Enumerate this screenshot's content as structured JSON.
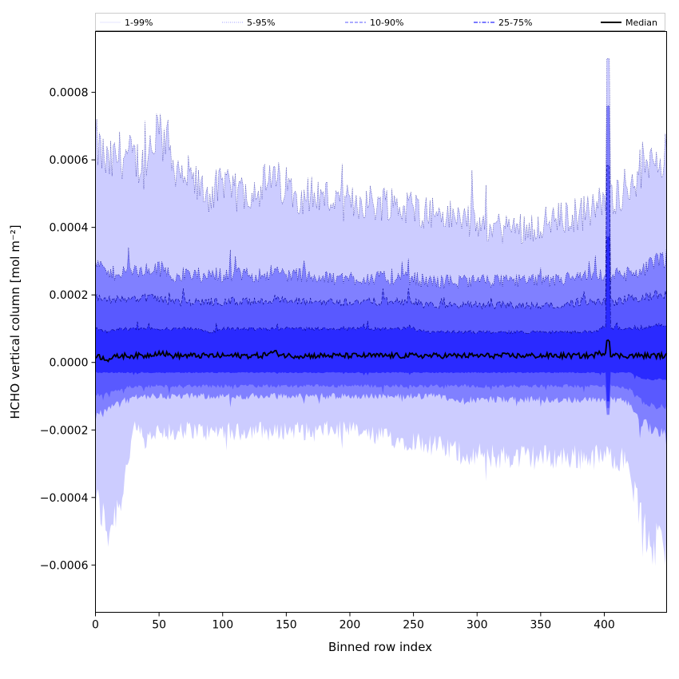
{
  "chart_data": {
    "type": "area",
    "title": "",
    "xlabel": "Binned row index",
    "ylabel": "HCHO vertical column [mol m⁻²]",
    "xlim": [
      0,
      449
    ],
    "ylim": [
      -0.00074,
      0.00098
    ],
    "x_ticks": [
      0,
      50,
      100,
      150,
      200,
      250,
      300,
      350,
      400
    ],
    "x_tick_labels": [
      "0",
      "50",
      "100",
      "150",
      "200",
      "250",
      "300",
      "350",
      "400"
    ],
    "y_ticks": [
      -0.0006,
      -0.0004,
      -0.0002,
      0.0,
      0.0002,
      0.0004,
      0.0006,
      0.0008
    ],
    "y_tick_labels": [
      "−0.0006",
      "−0.0004",
      "−0.0002",
      "0.0000",
      "0.0002",
      "0.0004",
      "0.0006",
      "0.0008"
    ],
    "grid": false,
    "legend_placement": "top, horizontal strip above the plot",
    "legend": [
      {
        "label": "1-99%",
        "color": "#ccccff",
        "style": "solid-thin"
      },
      {
        "label": "5-95%",
        "color": "#8080ff",
        "style": "dotted"
      },
      {
        "label": "10-90%",
        "color": "#5959ff",
        "style": "dashed"
      },
      {
        "label": "25-75%",
        "color": "#2a2aff",
        "style": "dashdot"
      },
      {
        "label": "Median",
        "color": "#000000",
        "style": "solid-thick"
      }
    ],
    "band_fill_colors": [
      "#ccccff",
      "#8080ff",
      "#5959ff",
      "#2a2aff"
    ],
    "edge_color": "#00008b",
    "x": [
      0,
      10,
      20,
      30,
      40,
      50,
      60,
      70,
      80,
      90,
      100,
      110,
      120,
      130,
      140,
      150,
      160,
      170,
      180,
      190,
      200,
      210,
      220,
      230,
      240,
      250,
      260,
      270,
      280,
      290,
      300,
      310,
      320,
      330,
      340,
      350,
      360,
      370,
      380,
      390,
      400,
      410,
      420,
      430,
      440,
      449
    ],
    "series": [
      {
        "name": "1-99%",
        "lower": [
          -0.0004,
          -0.0005,
          -0.0004,
          -0.0002,
          -0.00022,
          -0.0002,
          -0.00021,
          -0.0002,
          -0.0002,
          -0.00021,
          -0.0002,
          -0.00021,
          -0.0002,
          -0.0002,
          -0.00021,
          -0.0002,
          -0.0002,
          -0.00021,
          -0.0002,
          -0.0002,
          -0.0002,
          -0.00021,
          -0.00022,
          -0.00022,
          -0.00023,
          -0.00023,
          -0.00024,
          -0.00025,
          -0.00026,
          -0.00027,
          -0.00027,
          -0.00028,
          -0.00028,
          -0.00028,
          -0.00028,
          -0.00028,
          -0.00028,
          -0.00028,
          -0.00028,
          -0.00028,
          -0.00028,
          -0.00028,
          -0.0003,
          -0.0005,
          -0.00055,
          -0.00055
        ],
        "upper": [
          0.00065,
          0.00058,
          0.00062,
          0.0006,
          0.00058,
          0.00068,
          0.0006,
          0.00056,
          0.00052,
          0.0005,
          0.00052,
          0.0005,
          0.00051,
          0.00052,
          0.00054,
          0.00052,
          0.0005,
          0.0005,
          0.00049,
          0.00048,
          0.00047,
          0.00048,
          0.00047,
          0.00048,
          0.00046,
          0.00046,
          0.00045,
          0.00044,
          0.00043,
          0.00043,
          0.00041,
          0.0004,
          0.0004,
          0.0004,
          0.0004,
          0.00041,
          0.00042,
          0.00043,
          0.00044,
          0.00045,
          0.00048,
          0.0005,
          0.00053,
          0.00058,
          0.00063,
          0.0006
        ]
      },
      {
        "name": "5-95%",
        "lower": [
          -0.00016,
          -0.00014,
          -0.00012,
          -0.0001,
          -0.0001,
          -0.0001,
          -0.0001,
          -0.0001,
          -0.0001,
          -0.0001,
          -0.0001,
          -0.0001,
          -0.0001,
          -0.0001,
          -0.0001,
          -0.0001,
          -0.0001,
          -0.0001,
          -0.0001,
          -0.0001,
          -0.0001,
          -0.0001,
          -0.0001,
          -0.0001,
          -0.0001,
          -0.0001,
          -0.0001,
          -0.0001,
          -0.00011,
          -0.00011,
          -0.00011,
          -0.00011,
          -0.00011,
          -0.00011,
          -0.00011,
          -0.00011,
          -0.00011,
          -0.00011,
          -0.00011,
          -0.00011,
          -0.00011,
          -0.00011,
          -0.00012,
          -0.00018,
          -0.0002,
          -0.0002
        ],
        "upper": [
          0.0003,
          0.00026,
          0.00027,
          0.00027,
          0.00027,
          0.00028,
          0.00026,
          0.00026,
          0.00026,
          0.00026,
          0.00026,
          0.00026,
          0.00026,
          0.00026,
          0.00027,
          0.00026,
          0.00026,
          0.00026,
          0.00025,
          0.00025,
          0.00025,
          0.00025,
          0.00025,
          0.00025,
          0.00025,
          0.00025,
          0.00024,
          0.00024,
          0.00024,
          0.00024,
          0.00024,
          0.00024,
          0.00024,
          0.00024,
          0.00024,
          0.00024,
          0.00024,
          0.00025,
          0.00025,
          0.00025,
          0.00026,
          0.00026,
          0.00026,
          0.00027,
          0.0003,
          0.0003
        ]
      },
      {
        "name": "10-90%",
        "lower": [
          -0.0001,
          -9e-05,
          -8e-05,
          -7e-05,
          -7e-05,
          -7e-05,
          -7e-05,
          -7e-05,
          -7e-05,
          -7e-05,
          -7e-05,
          -7e-05,
          -7e-05,
          -7e-05,
          -7e-05,
          -7e-05,
          -7e-05,
          -7e-05,
          -7e-05,
          -7e-05,
          -7e-05,
          -7e-05,
          -7e-05,
          -7e-05,
          -7e-05,
          -7e-05,
          -7e-05,
          -7e-05,
          -7e-05,
          -7e-05,
          -7e-05,
          -7e-05,
          -7e-05,
          -7e-05,
          -7e-05,
          -7e-05,
          -7e-05,
          -7e-05,
          -7e-05,
          -7e-05,
          -7e-05,
          -7e-05,
          -8e-05,
          -0.00012,
          -0.00013,
          -0.00013
        ],
        "upper": [
          0.00019,
          0.00018,
          0.00019,
          0.00019,
          0.00019,
          0.00019,
          0.00018,
          0.00018,
          0.00018,
          0.00018,
          0.00018,
          0.00018,
          0.00018,
          0.00018,
          0.00019,
          0.00018,
          0.00018,
          0.00018,
          0.00018,
          0.00018,
          0.00018,
          0.00018,
          0.00018,
          0.00018,
          0.00018,
          0.00018,
          0.00017,
          0.00017,
          0.00017,
          0.00017,
          0.00017,
          0.00017,
          0.00017,
          0.00017,
          0.00017,
          0.00017,
          0.00017,
          0.00017,
          0.00018,
          0.00018,
          0.00018,
          0.00018,
          0.00019,
          0.00019,
          0.0002,
          0.0002
        ]
      },
      {
        "name": "25-75%",
        "lower": [
          -3e-05,
          -3e-05,
          -3e-05,
          -3e-05,
          -3e-05,
          -3e-05,
          -3e-05,
          -3e-05,
          -3e-05,
          -3e-05,
          -3e-05,
          -3e-05,
          -3e-05,
          -3e-05,
          -3e-05,
          -3e-05,
          -3e-05,
          -3e-05,
          -3e-05,
          -3e-05,
          -3e-05,
          -3e-05,
          -3e-05,
          -3e-05,
          -3e-05,
          -3e-05,
          -3e-05,
          -3e-05,
          -3e-05,
          -3e-05,
          -3e-05,
          -3e-05,
          -3e-05,
          -3e-05,
          -3e-05,
          -3e-05,
          -3e-05,
          -3e-05,
          -3e-05,
          -3e-05,
          -3e-05,
          -3e-05,
          -3e-05,
          -5e-05,
          -5e-05,
          -5e-05
        ],
        "upper": [
          0.0001,
          9e-05,
          0.0001,
          0.0001,
          0.0001,
          0.0001,
          0.0001,
          0.0001,
          0.0001,
          9e-05,
          0.0001,
          0.0001,
          0.0001,
          0.0001,
          0.0001,
          0.0001,
          0.0001,
          0.0001,
          0.0001,
          0.0001,
          0.0001,
          0.0001,
          0.0001,
          0.0001,
          0.0001,
          0.0001,
          9e-05,
          9e-05,
          9e-05,
          9e-05,
          9e-05,
          9e-05,
          9e-05,
          9e-05,
          9e-05,
          9e-05,
          9e-05,
          9e-05,
          9e-05,
          9e-05,
          0.0001,
          0.0001,
          0.0001,
          0.0001,
          0.00011,
          0.00011
        ]
      },
      {
        "name": "Median",
        "values": [
          2e-05,
          1e-05,
          2e-05,
          2e-05,
          2e-05,
          3e-05,
          2e-05,
          2e-05,
          2e-05,
          2e-05,
          2e-05,
          2e-05,
          2e-05,
          2e-05,
          3e-05,
          2e-05,
          2e-05,
          2e-05,
          2e-05,
          2e-05,
          2e-05,
          2e-05,
          2e-05,
          2e-05,
          2e-05,
          2e-05,
          2e-05,
          2e-05,
          2e-05,
          2e-05,
          2e-05,
          2e-05,
          2e-05,
          2e-05,
          2e-05,
          2e-05,
          2e-05,
          2e-05,
          2e-05,
          2e-05,
          3e-05,
          2e-05,
          2e-05,
          2e-05,
          2e-05,
          2e-05
        ]
      }
    ],
    "annotations": [
      {
        "x": 403,
        "upper": 0.0009,
        "lower": -0.0002
      }
    ]
  }
}
